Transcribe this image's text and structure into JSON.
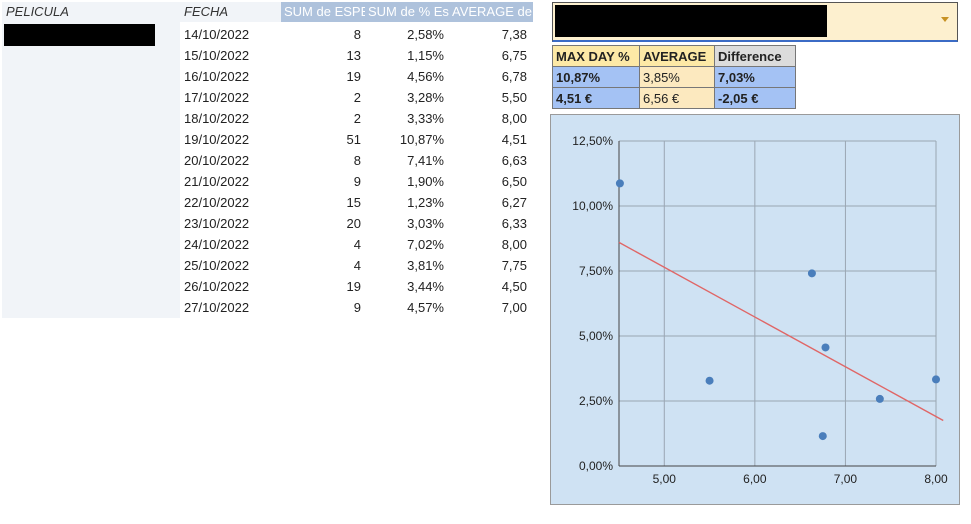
{
  "pivot": {
    "headers": {
      "pelicula": "PELICULA",
      "fecha": "FECHA",
      "sum_esp": "SUM de ESPECTADORES",
      "sum_pct": "SUM de % Espectadores",
      "average": "AVERAGE de PRECIO"
    },
    "rows": [
      {
        "fecha": "14/10/2022",
        "esp": "8",
        "pct": "2,58%",
        "avg": "7,38"
      },
      {
        "fecha": "15/10/2022",
        "esp": "13",
        "pct": "1,15%",
        "avg": "6,75"
      },
      {
        "fecha": "16/10/2022",
        "esp": "19",
        "pct": "4,56%",
        "avg": "6,78"
      },
      {
        "fecha": "17/10/2022",
        "esp": "2",
        "pct": "3,28%",
        "avg": "5,50"
      },
      {
        "fecha": "18/10/2022",
        "esp": "2",
        "pct": "3,33%",
        "avg": "8,00"
      },
      {
        "fecha": "19/10/2022",
        "esp": "51",
        "pct": "10,87%",
        "avg": "4,51"
      },
      {
        "fecha": "20/10/2022",
        "esp": "8",
        "pct": "7,41%",
        "avg": "6,63"
      },
      {
        "fecha": "21/10/2022",
        "esp": "9",
        "pct": "1,90%",
        "avg": "6,50"
      },
      {
        "fecha": "22/10/2022",
        "esp": "15",
        "pct": "1,23%",
        "avg": "6,27"
      },
      {
        "fecha": "23/10/2022",
        "esp": "20",
        "pct": "3,03%",
        "avg": "6,33"
      },
      {
        "fecha": "24/10/2022",
        "esp": "4",
        "pct": "7,02%",
        "avg": "8,00"
      },
      {
        "fecha": "25/10/2022",
        "esp": "4",
        "pct": "3,81%",
        "avg": "7,75"
      },
      {
        "fecha": "26/10/2022",
        "esp": "19",
        "pct": "3,44%",
        "avg": "4,50"
      },
      {
        "fecha": "27/10/2022",
        "esp": "9",
        "pct": "4,57%",
        "avg": "7,00"
      }
    ]
  },
  "dropdown": {
    "icon": "dropdown-arrow-icon"
  },
  "stats": {
    "headers": {
      "max_day": "MAX DAY %",
      "average": "AVERAGE",
      "difference": "Difference"
    },
    "row1": {
      "max_day": "10,87%",
      "average": "3,85%",
      "difference": "7,03%"
    },
    "row2": {
      "max_day": "4,51 €",
      "average": "6,56 €",
      "difference": "-2,05 €"
    }
  },
  "chart_data": {
    "type": "scatter",
    "x_ticks": [
      "5,00",
      "6,00",
      "7,00",
      "8,00"
    ],
    "y_ticks": [
      "0,00%",
      "2,50%",
      "5,00%",
      "7,50%",
      "10,00%",
      "12,50%"
    ],
    "xlim": [
      4.5,
      8.0
    ],
    "ylim": [
      0,
      12.5
    ],
    "points": [
      {
        "x": 4.51,
        "y": 10.87
      },
      {
        "x": 5.5,
        "y": 3.28
      },
      {
        "x": 6.63,
        "y": 7.41
      },
      {
        "x": 6.75,
        "y": 1.15
      },
      {
        "x": 6.78,
        "y": 4.56
      },
      {
        "x": 7.38,
        "y": 2.58
      },
      {
        "x": 8.0,
        "y": 3.33
      }
    ],
    "trendline": {
      "x0": 4.5,
      "y0": 8.6,
      "x1": 8.08,
      "y1": 1.75
    },
    "colors": {
      "points": "#4a7ebb",
      "trend": "#e06666",
      "grid": "#9aa6b2",
      "background": "#cfe2f3"
    }
  }
}
